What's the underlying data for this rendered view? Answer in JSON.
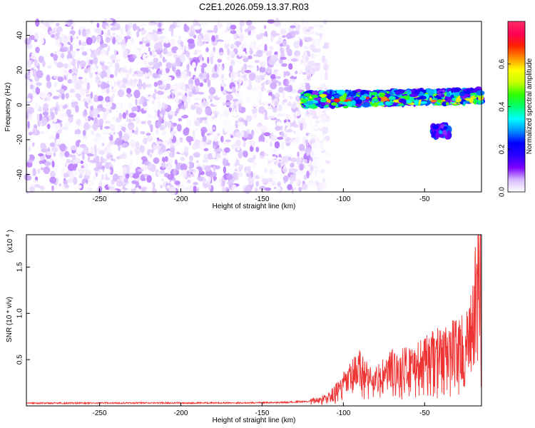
{
  "title": "C2E1.2026.059.13.37.R03",
  "chart_data": [
    {
      "type": "heatmap",
      "xlabel": "Height of straight line (km)",
      "ylabel": "Frequency (Hz)",
      "xlim": [
        -295,
        -15
      ],
      "ylim": [
        -50,
        48
      ],
      "x_ticks": [
        -250,
        -200,
        -150,
        -100,
        -50
      ],
      "y_ticks": [
        -40,
        -20,
        0,
        20,
        40
      ],
      "colorbar": {
        "label": "Normalized spectral amplitude",
        "range": [
          0,
          0.8
        ],
        "ticks": [
          0.0,
          0.2,
          0.4,
          0.6
        ],
        "tick_labels": [
          "0.0",
          "0.2",
          "0.4",
          "0.6"
        ],
        "colormap": [
          "#ffffff",
          "#d6b8ff",
          "#7b00ff",
          "#2a00ff",
          "#0000ff",
          "#0090ff",
          "#00ffff",
          "#00ff70",
          "#30ff00",
          "#c8ff00",
          "#ffff00",
          "#ff9000",
          "#ff2000",
          "#ff0055",
          "#ff2f6a"
        ]
      },
      "regions": [
        {
          "x_range": [
            -295,
            -120
          ],
          "y_range": [
            -50,
            48
          ],
          "amplitude": [
            0.0,
            0.08
          ],
          "description_type": "noise"
        },
        {
          "x_range": [
            -120,
            -110
          ],
          "y_range": [
            -50,
            48
          ],
          "amplitude": [
            0.0,
            0.03
          ],
          "description_type": "sparse"
        },
        {
          "x_range": [
            -125,
            -15
          ],
          "y_center": 3,
          "y_halfwidth": 4,
          "amplitude": [
            0.1,
            0.75
          ],
          "description_type": "band"
        },
        {
          "x_range": [
            -45,
            -35
          ],
          "y_center": -15,
          "y_halfwidth": 3,
          "amplitude": [
            0.1,
            0.3
          ],
          "description_type": "tail"
        }
      ]
    },
    {
      "type": "line",
      "xlabel": "Height of straight line (km)",
      "ylabel": "SNR (10 * v/v)",
      "y_multiplier_label": "(x10",
      "y_multiplier_exp": "4",
      "y_multiplier_close": ")",
      "xlim": [
        -295,
        -15
      ],
      "ylim": [
        0,
        18500
      ],
      "x_ticks": [
        -250,
        -200,
        -150,
        -100,
        -50
      ],
      "y_ticks": [
        5000,
        10000,
        15000
      ],
      "y_tick_labels": [
        "0.5",
        "1.0",
        "1.5"
      ],
      "color": "#ee3333",
      "series": [
        {
          "x": [
            -295,
            -260,
            -220,
            -180,
            -140,
            -120,
            -110,
            -105,
            -100,
            -95,
            -90,
            -85,
            -80,
            -75,
            -70,
            -65,
            -60,
            -55,
            -50,
            -45,
            -40,
            -35,
            -30,
            -25,
            -22,
            -20,
            -18,
            -16,
            -15
          ],
          "values": [
            300,
            300,
            320,
            320,
            350,
            500,
            800,
            1400,
            2200,
            3000,
            3800,
            3000,
            2600,
            3200,
            3800,
            3600,
            4200,
            4200,
            4500,
            5000,
            5200,
            5400,
            6200,
            5800,
            7000,
            9000,
            12000,
            17000,
            4000
          ]
        }
      ]
    }
  ]
}
